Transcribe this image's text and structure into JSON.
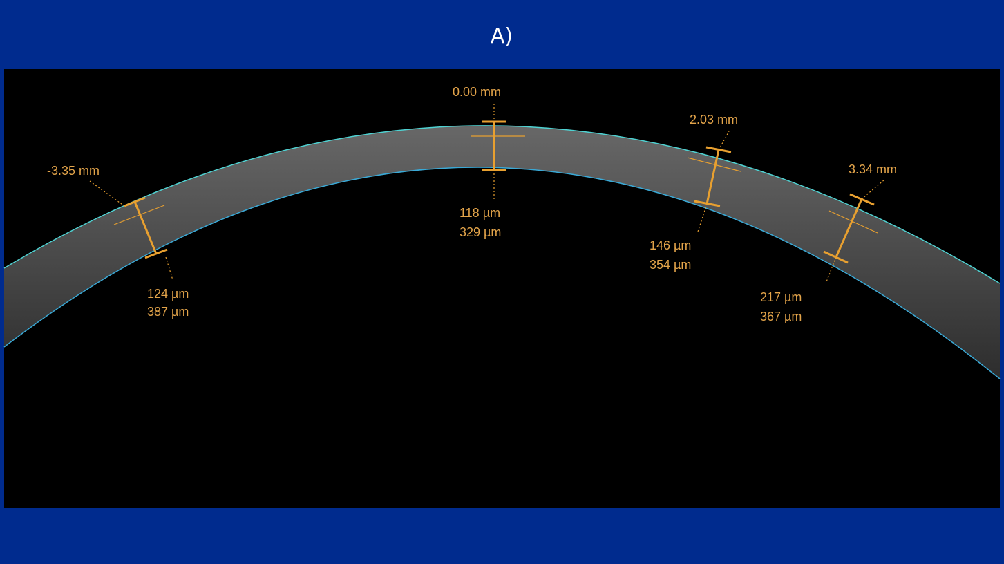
{
  "header": {
    "title": "A)"
  },
  "measurements": [
    {
      "position": "-3.35 mm",
      "thickness": "124 µm",
      "depth": "387 µm"
    },
    {
      "position": "0.00 mm",
      "thickness": "118 µm",
      "depth": "329 µm"
    },
    {
      "position": "2.03 mm",
      "thickness": "146 µm",
      "depth": "354 µm"
    },
    {
      "position": "3.34 mm",
      "thickness": "217 µm",
      "depth": "367 µm"
    }
  ]
}
